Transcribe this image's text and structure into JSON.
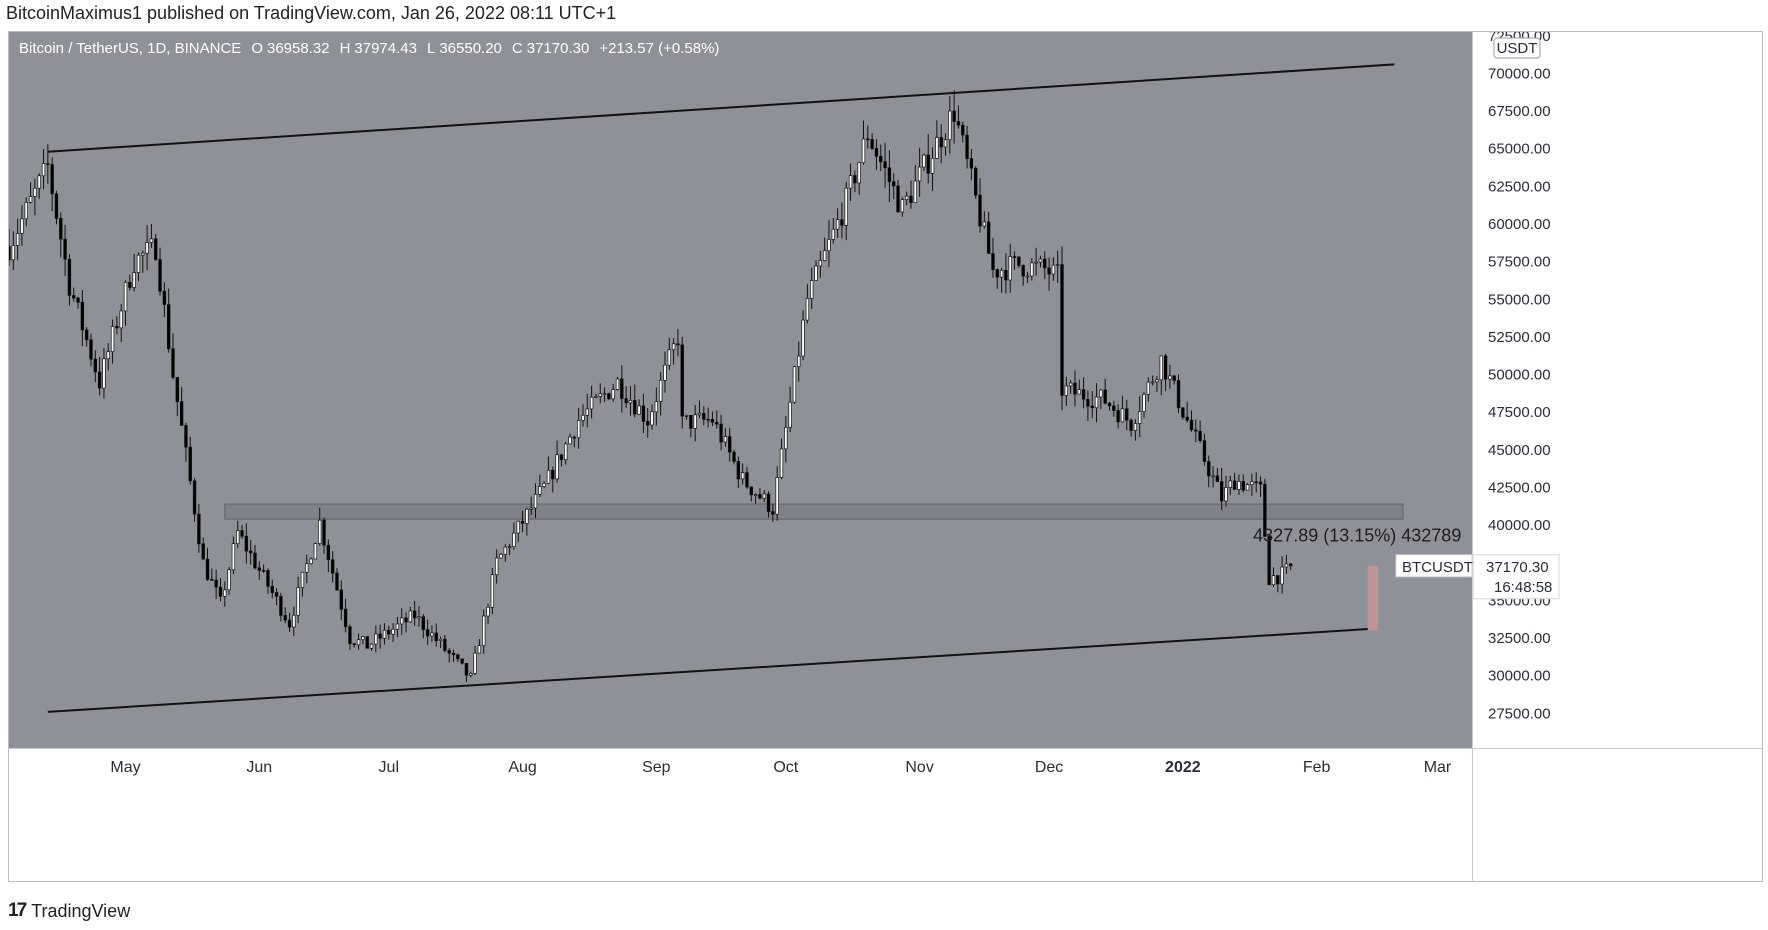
{
  "header": {
    "published_by": "BitcoinMaximus1 published on TradingView.com, Jan 26, 2022 08:11 UTC+1"
  },
  "footer": {
    "brand": "TradingView",
    "logo_mark": "17"
  },
  "colors": {
    "chart_bg": "#8f9198",
    "axis_bg": "#ffffff",
    "candle_up_body": "#ffffff",
    "candle_down_body": "#000000",
    "channel_line": "#111111",
    "support_zone": "#7b7e85",
    "measure_bar": "#c8959a"
  },
  "chart_data": {
    "type": "candlestick",
    "symbol_legend": {
      "name": "Bitcoin / TetherUS, 1D, BINANCE",
      "o_label": "O",
      "o_value": "36958.32",
      "h_label": "H",
      "h_value": "37974.43",
      "l_label": "L",
      "l_value": "36550.20",
      "c_label": "C",
      "c_value": "37170.30",
      "change": "+213.57 (+0.58%)"
    },
    "currency_badge": "USDT",
    "x_axis": {
      "range": [
        "2021-04-04",
        "2022-03-09"
      ],
      "month_ticks": [
        {
          "label": "May",
          "date": "2021-05-01",
          "bold": false
        },
        {
          "label": "Jun",
          "date": "2021-06-01",
          "bold": false
        },
        {
          "label": "Jul",
          "date": "2021-07-01",
          "bold": false
        },
        {
          "label": "Aug",
          "date": "2021-08-01",
          "bold": false
        },
        {
          "label": "Sep",
          "date": "2021-09-01",
          "bold": false
        },
        {
          "label": "Oct",
          "date": "2021-10-01",
          "bold": false
        },
        {
          "label": "Nov",
          "date": "2021-11-01",
          "bold": false
        },
        {
          "label": "Dec",
          "date": "2021-12-01",
          "bold": false
        },
        {
          "label": "2022",
          "date": "2022-01-01",
          "bold": true
        },
        {
          "label": "Feb",
          "date": "2022-02-01",
          "bold": false
        },
        {
          "label": "Mar",
          "date": "2022-03-01",
          "bold": false
        }
      ]
    },
    "y_axis": {
      "range": [
        25200,
        72750
      ],
      "ticks": [
        72500,
        70000,
        67500,
        65000,
        62500,
        60000,
        57500,
        55000,
        52500,
        50000,
        47500,
        45000,
        42500,
        40000,
        35000,
        32500,
        30000,
        27500
      ],
      "tick_labels": [
        "72500.00",
        "70000.00",
        "67500.00",
        "65000.00",
        "62500.00",
        "60000.00",
        "57500.00",
        "55000.00",
        "52500.00",
        "50000.00",
        "47500.00",
        "45000.00",
        "42500.00",
        "40000.00",
        "35000.00",
        "32500.00",
        "30000.00",
        "27500.00"
      ]
    },
    "price_path": [
      [
        "2021-04-04",
        58500
      ],
      [
        "2021-04-13",
        63800
      ],
      [
        "2021-04-18",
        56000
      ],
      [
        "2021-04-25",
        49500
      ],
      [
        "2021-05-03",
        57500
      ],
      [
        "2021-05-08",
        58500
      ],
      [
        "2021-05-12",
        50000
      ],
      [
        "2021-05-19",
        37500
      ],
      [
        "2021-05-23",
        34800
      ],
      [
        "2021-05-27",
        39500
      ],
      [
        "2021-06-08",
        33500
      ],
      [
        "2021-06-15",
        40200
      ],
      [
        "2021-06-22",
        32500
      ],
      [
        "2021-06-26",
        32000
      ],
      [
        "2021-07-07",
        34000
      ],
      [
        "2021-07-20",
        29800
      ],
      [
        "2021-07-26",
        37500
      ],
      [
        "2021-08-06",
        42500
      ],
      [
        "2021-08-14",
        47000
      ],
      [
        "2021-08-23",
        49500
      ],
      [
        "2021-08-30",
        47000
      ],
      [
        "2021-09-06",
        52500
      ],
      [
        "2021-09-07",
        46800
      ],
      [
        "2021-09-14",
        47000
      ],
      [
        "2021-09-21",
        43000
      ],
      [
        "2021-09-28",
        41100
      ],
      [
        "2021-10-06",
        55000
      ],
      [
        "2021-10-15",
        61500
      ],
      [
        "2021-10-20",
        66000
      ],
      [
        "2021-10-28",
        61000
      ],
      [
        "2021-11-09",
        67500
      ],
      [
        "2021-11-18",
        56900
      ],
      [
        "2021-11-24",
        57300
      ],
      [
        "2021-11-30",
        57000
      ],
      [
        "2021-12-03",
        56500
      ],
      [
        "2021-12-04",
        49000
      ],
      [
        "2021-12-14",
        48300
      ],
      [
        "2021-12-20",
        46800
      ],
      [
        "2021-12-27",
        51000
      ],
      [
        "2022-01-01",
        47600
      ],
      [
        "2022-01-10",
        41800
      ],
      [
        "2022-01-13",
        43000
      ],
      [
        "2022-01-19",
        42300
      ],
      [
        "2022-01-21",
        36500
      ],
      [
        "2022-01-24",
        36700
      ],
      [
        "2022-01-26",
        37170
      ]
    ],
    "annotations": {
      "channel_upper": [
        [
          "2021-04-13",
          64800
        ],
        [
          "2022-02-19",
          70600
        ]
      ],
      "channel_lower": [
        [
          "2021-04-13",
          27600
        ],
        [
          "2022-02-13",
          33100
        ]
      ],
      "support_zone": {
        "start": "2021-05-24",
        "end": "2022-02-21",
        "y_low": 40400,
        "y_high": 41400
      },
      "measure_bar": {
        "date": "2022-02-14",
        "y_low": 33000,
        "y_high": 37300
      },
      "measure_label": "4327.89 (13.15%) 432789",
      "measure_label_date": "2022-01-21",
      "measure_label_value": 38900,
      "last_price": {
        "value": 37170.3,
        "label": "37170.30",
        "countdown": "16:48:58",
        "symbol_tag": "BTCUSDT"
      }
    }
  }
}
